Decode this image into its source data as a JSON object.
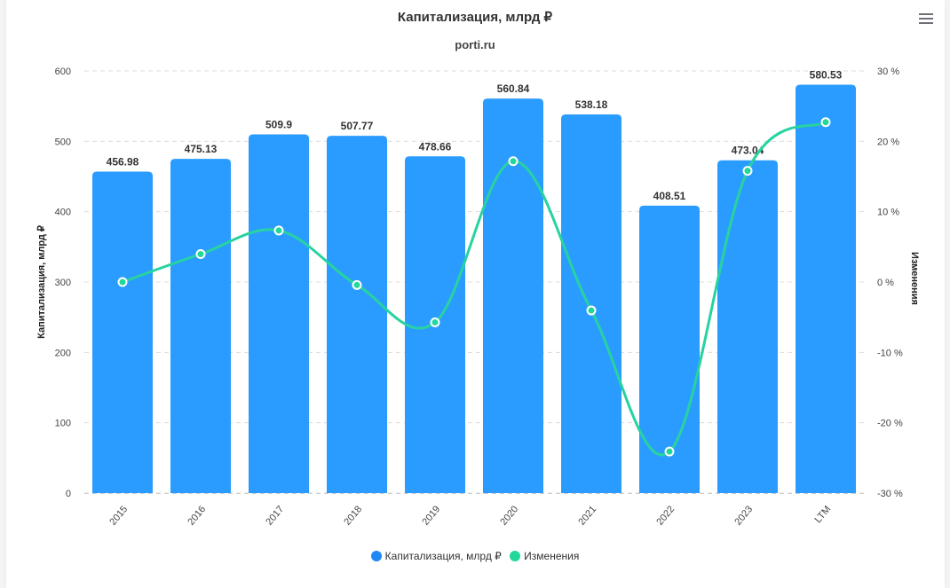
{
  "header": {
    "title": "Капитализация, млрд ₽",
    "subtitle": "porti.ru",
    "menu_icon": "hamburger-menu-icon"
  },
  "axes": {
    "left_label": "Капитализация, млрд ₽",
    "right_label": "Изменения",
    "left_ticks": [
      "0",
      "100",
      "200",
      "300",
      "400",
      "500",
      "600"
    ],
    "right_ticks": [
      "-30 %",
      "-20 %",
      "-10 %",
      "0 %",
      "10 %",
      "20 %",
      "30 %"
    ]
  },
  "legend": {
    "items": [
      {
        "label": "Капитализация, млрд ₽",
        "color": "#2b9cff"
      },
      {
        "label": "Изменения",
        "color": "#20d89a"
      }
    ]
  },
  "colors": {
    "bar": "#2b9cff",
    "line": "#27d3a0",
    "marker_fill": "#20d89a",
    "grid": "#dddddd"
  },
  "chart_data": {
    "type": "bar",
    "title": "Капитализация, млрд ₽",
    "subtitle": "porti.ru",
    "categories": [
      "2015",
      "2016",
      "2017",
      "2018",
      "2019",
      "2020",
      "2021",
      "2022",
      "2023",
      "LTM"
    ],
    "series": [
      {
        "name": "Капитализация, млрд ₽",
        "type": "bar",
        "axis": "left",
        "values": [
          456.98,
          475.13,
          509.9,
          507.77,
          478.66,
          560.84,
          538.18,
          408.51,
          473.04,
          580.53
        ],
        "labels": [
          "456.98",
          "475.13",
          "509.9",
          "507.77",
          "478.66",
          "560.84",
          "538.18",
          "408.51",
          "473.04",
          "580.53"
        ]
      },
      {
        "name": "Изменения",
        "type": "line",
        "axis": "right",
        "unit": "%",
        "values": [
          0,
          3.97,
          7.32,
          -0.42,
          -5.73,
          17.17,
          -4.04,
          -24.09,
          15.8,
          22.72
        ]
      }
    ],
    "xlabel": "",
    "ylabel": "Капитализация, млрд ₽",
    "y2label": "Изменения",
    "ylim": [
      0,
      600
    ],
    "y2lim": [
      -30,
      30
    ],
    "grid": true,
    "legend_position": "bottom"
  }
}
